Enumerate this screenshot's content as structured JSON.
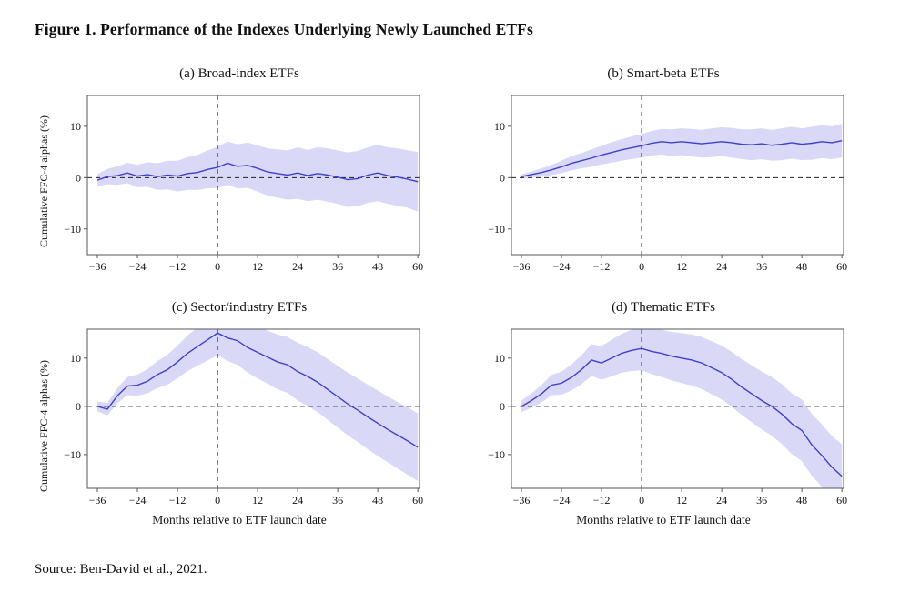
{
  "figure": {
    "title": "Figure 1. Performance of the Indexes Underlying Newly Launched ETFs",
    "source": "Source: Ben-David et al., 2021."
  },
  "chart_data": {
    "type": "line",
    "ylabel": "Cumulative FFC-4 alphas (%)",
    "xlabel": "Months relative to ETF launch date",
    "xticks": [
      -36,
      -24,
      -12,
      0,
      12,
      24,
      36,
      48,
      60
    ],
    "yticks": [
      -10,
      0,
      10
    ],
    "xlim": [
      -39,
      60.5
    ],
    "line_color": "#4040c8",
    "band_color": "#d9d9f7",
    "grid": false,
    "legend": "none",
    "x": [
      -36,
      -33,
      -30,
      -27,
      -24,
      -21,
      -18,
      -15,
      -12,
      -9,
      -6,
      -3,
      0,
      3,
      6,
      9,
      12,
      15,
      18,
      21,
      24,
      27,
      30,
      33,
      36,
      39,
      42,
      45,
      48,
      51,
      54,
      57,
      60
    ],
    "panels": [
      {
        "id": "a",
        "title": "(a) Broad-index ETFs",
        "ylim": [
          -15,
          16
        ],
        "line": [
          -0.5,
          0.2,
          0.4,
          0.9,
          0.3,
          0.6,
          0.2,
          0.5,
          0.3,
          0.8,
          1.0,
          1.6,
          2.0,
          2.8,
          2.2,
          2.4,
          1.8,
          1.1,
          0.8,
          0.5,
          0.9,
          0.4,
          0.8,
          0.5,
          0.1,
          -0.4,
          -0.2,
          0.5,
          0.9,
          0.4,
          0.1,
          -0.3,
          -0.8
        ],
        "band_halfwidth": [
          1.2,
          1.5,
          1.8,
          2.0,
          2.2,
          2.4,
          2.6,
          2.8,
          3.0,
          3.2,
          3.4,
          3.7,
          4.0,
          4.2,
          4.3,
          4.4,
          4.5,
          4.6,
          4.7,
          4.8,
          5.0,
          5.0,
          5.1,
          5.2,
          5.2,
          5.3,
          5.4,
          5.4,
          5.5,
          5.5,
          5.6,
          5.6,
          5.8
        ]
      },
      {
        "id": "b",
        "title": "(b) Smart-beta ETFs",
        "ylim": [
          -15,
          16
        ],
        "line": [
          0.2,
          0.6,
          1.0,
          1.5,
          2.1,
          2.8,
          3.3,
          3.8,
          4.4,
          4.9,
          5.4,
          5.8,
          6.2,
          6.7,
          7.0,
          6.8,
          7.0,
          6.8,
          6.6,
          6.8,
          7.0,
          6.8,
          6.5,
          6.4,
          6.6,
          6.3,
          6.5,
          6.8,
          6.5,
          6.7,
          7.0,
          6.8,
          7.2
        ],
        "band_halfwidth": [
          0.4,
          0.6,
          0.8,
          1.0,
          1.2,
          1.4,
          1.5,
          1.7,
          1.8,
          2.0,
          2.1,
          2.2,
          2.3,
          2.4,
          2.5,
          2.6,
          2.6,
          2.7,
          2.7,
          2.8,
          2.8,
          2.9,
          2.9,
          3.0,
          3.0,
          3.0,
          3.1,
          3.1,
          3.1,
          3.2,
          3.2,
          3.2,
          3.3
        ]
      },
      {
        "id": "c",
        "title": "(c) Sector/industry ETFs",
        "ylim": [
          -17,
          16
        ],
        "line": [
          0.0,
          -0.6,
          2.2,
          4.2,
          4.4,
          5.2,
          6.6,
          7.6,
          9.2,
          11.0,
          12.4,
          13.8,
          15.2,
          14.2,
          13.6,
          12.2,
          11.2,
          10.2,
          9.2,
          8.6,
          7.2,
          6.2,
          5.0,
          3.5,
          2.0,
          0.5,
          -0.8,
          -2.2,
          -3.5,
          -4.8,
          -6.0,
          -7.2,
          -8.5
        ],
        "band_halfwidth": [
          1.0,
          1.3,
          1.6,
          1.9,
          2.2,
          2.5,
          2.8,
          3.1,
          3.4,
          3.7,
          4.0,
          4.3,
          4.6,
          4.8,
          5.0,
          5.2,
          5.4,
          5.5,
          5.7,
          5.8,
          6.0,
          6.1,
          6.2,
          6.3,
          6.4,
          6.5,
          6.6,
          6.7,
          6.8,
          6.8,
          6.9,
          7.0,
          7.0
        ]
      },
      {
        "id": "d",
        "title": "(d) Thematic ETFs",
        "ylim": [
          -17,
          16
        ],
        "line": [
          0.0,
          1.2,
          2.6,
          4.4,
          4.8,
          6.0,
          7.6,
          9.6,
          9.0,
          10.0,
          11.0,
          11.6,
          12.0,
          11.4,
          11.0,
          10.4,
          10.0,
          9.6,
          9.0,
          8.0,
          7.0,
          5.6,
          4.0,
          2.6,
          1.2,
          0.0,
          -1.6,
          -3.6,
          -5.0,
          -8.0,
          -10.2,
          -12.6,
          -14.5
        ],
        "band_halfwidth": [
          1.2,
          1.5,
          1.8,
          2.1,
          2.4,
          2.7,
          3.0,
          3.3,
          3.5,
          3.8,
          4.0,
          4.3,
          4.5,
          4.7,
          4.9,
          5.0,
          5.2,
          5.3,
          5.4,
          5.5,
          5.6,
          5.7,
          5.8,
          5.9,
          6.0,
          6.1,
          6.2,
          6.3,
          6.4,
          6.4,
          6.5,
          6.5,
          6.6
        ]
      }
    ]
  }
}
